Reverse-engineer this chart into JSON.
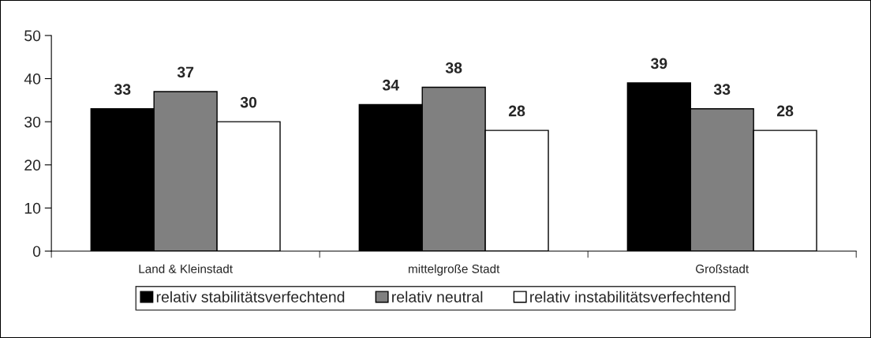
{
  "chart_data": {
    "type": "bar",
    "categories": [
      "Land & Kleinstadt",
      "mittelgroße Stadt",
      "Großstadt"
    ],
    "series": [
      {
        "name": "relativ stabilitätsverfechtend",
        "color": "#000000",
        "values": [
          33,
          34,
          39
        ]
      },
      {
        "name": "relativ neutral",
        "color": "#808080",
        "values": [
          37,
          38,
          33
        ]
      },
      {
        "name": "relativ instabilitätsverfechtend",
        "color": "#ffffff",
        "values": [
          30,
          28,
          28
        ]
      }
    ],
    "ylim": [
      0,
      50
    ],
    "yticks": [
      0,
      10,
      20,
      30,
      40,
      50
    ],
    "data_labels": true,
    "grid": false,
    "legend": "bottom"
  }
}
